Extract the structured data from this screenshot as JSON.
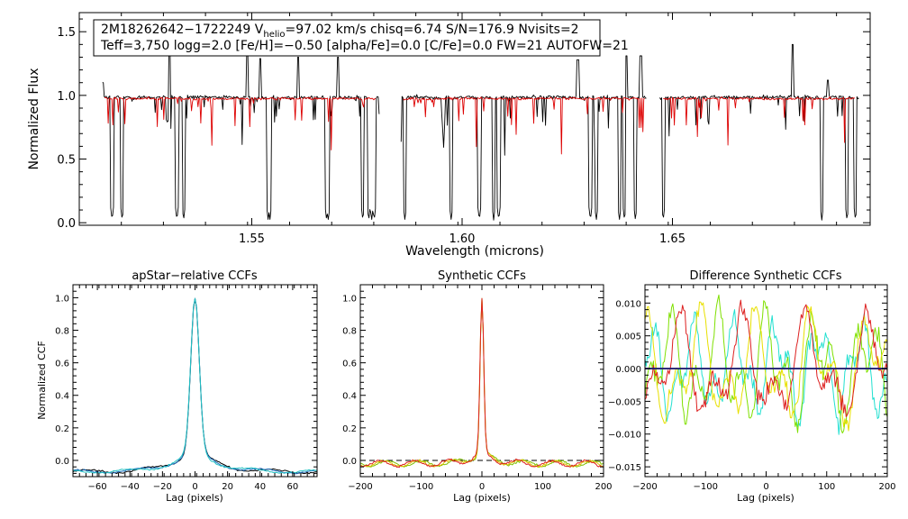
{
  "chart_data": [
    {
      "type": "line",
      "panel": "spectrum",
      "info": {
        "line1_part1": "2M18262642−1722249  V",
        "line1_sub": "helio",
        "line1_part2": "=97.02 km/s  chisq=6.74  S/N=176.9  Nvisits=2",
        "line2": "Teff=3,750 logg=2.0 [Fe/H]=−0.50 [alpha/Fe]=0.0 [C/Fe]=0.0 FW=21 AUTOFW=21"
      },
      "xlabel": "Wavelength (microns)",
      "ylabel": "Normalized Flux",
      "xlim": [
        1.509,
        1.697
      ],
      "ylim": [
        -0.02,
        1.65
      ],
      "xticks": [
        1.55,
        1.6,
        1.65
      ],
      "xtick_labels": [
        "1.55",
        "1.60",
        "1.65"
      ],
      "yticks": [
        0.0,
        0.5,
        1.0,
        1.5
      ],
      "ytick_labels": [
        "0.0",
        "0.5",
        "1.0",
        "1.5"
      ],
      "chips": [
        [
          1.5145,
          1.5805
        ],
        [
          1.5855,
          1.644
        ],
        [
          1.647,
          1.6945
        ]
      ],
      "model_ranges": [
        [
          1.515,
          1.5795
        ],
        [
          1.586,
          1.6435
        ],
        [
          1.6478,
          1.6935
        ]
      ],
      "series": [
        {
          "role": "observed",
          "color": "#000000"
        },
        {
          "role": "model",
          "color": "#dd0000"
        }
      ],
      "deep_features": [
        1.5168,
        1.5192,
        1.5322,
        1.5338,
        1.5539,
        1.5543,
        1.5678,
        1.5682,
        1.5764,
        1.5778,
        1.5785,
        1.5791,
        1.5864,
        1.5974,
        1.6041,
        1.6075,
        1.6087,
        1.6305,
        1.6319,
        1.6374,
        1.6386,
        1.6412,
        1.6478,
        1.6855,
        1.6915,
        1.6935
      ],
      "spikes": [
        [
          1.5145,
          1.1
        ],
        [
          1.5305,
          1.46
        ],
        [
          1.549,
          1.37
        ],
        [
          1.552,
          1.29
        ],
        [
          1.561,
          1.3
        ],
        [
          1.5705,
          1.3
        ],
        [
          1.6086,
          1.18
        ],
        [
          1.6275,
          1.28
        ],
        [
          1.639,
          1.31
        ],
        [
          1.6425,
          1.31
        ],
        [
          1.6785,
          1.4
        ],
        [
          1.687,
          1.12
        ]
      ]
    },
    {
      "type": "line",
      "panel": "ccf_apstar",
      "title": "apStar−relative CCFs",
      "xlabel": "Lag (pixels)",
      "ylabel": "Normalized CCF",
      "xlim": [
        -75,
        75
      ],
      "ylim": [
        -0.1,
        1.08
      ],
      "xticks": [
        -60,
        -40,
        -20,
        0,
        20,
        40,
        60
      ],
      "xtick_labels": [
        "−60",
        "−40",
        "−20",
        "0",
        "20",
        "40",
        "60"
      ],
      "yticks": [
        0.0,
        0.2,
        0.4,
        0.6,
        0.8,
        1.0
      ],
      "ytick_labels": [
        "0.0",
        "0.2",
        "0.4",
        "0.6",
        "0.8",
        "1.0"
      ],
      "series": [
        {
          "color": "#000000"
        },
        {
          "color": "#1d6fbf"
        },
        {
          "color": "#22c2c2"
        }
      ]
    },
    {
      "type": "line",
      "panel": "ccf_synthetic",
      "title": "Synthetic CCFs",
      "xlabel": "Lag (pixels)",
      "xlim": [
        -200,
        200
      ],
      "ylim": [
        -0.1,
        1.08
      ],
      "xticks": [
        -200,
        -100,
        0,
        100,
        200
      ],
      "xtick_labels": [
        "−200",
        "−100",
        "0",
        "100",
        "200"
      ],
      "yticks": [
        0.0,
        0.2,
        0.4,
        0.6,
        0.8,
        1.0
      ],
      "ytick_labels": [
        "0.0",
        "0.2",
        "0.4",
        "0.6",
        "0.8",
        "1.0"
      ],
      "zero_line": 0.0,
      "series": [
        {
          "color": "#7fc000"
        },
        {
          "color": "#e0c000"
        },
        {
          "color": "#dd2020"
        }
      ]
    },
    {
      "type": "line",
      "panel": "ccf_difference",
      "title": "Difference Synthetic CCFs",
      "xlabel": "Lag (pixels)",
      "xlim": [
        -200,
        200
      ],
      "ylim": [
        -0.0165,
        0.0128
      ],
      "xticks": [
        -200,
        -100,
        0,
        100,
        200
      ],
      "xtick_labels": [
        "−200",
        "−100",
        "0",
        "100",
        "200"
      ],
      "yticks": [
        -0.015,
        -0.01,
        -0.005,
        0.0,
        0.005,
        0.01
      ],
      "ytick_labels": [
        "−0.015",
        "−0.010",
        "−0.005",
        "0.000",
        "0.005",
        "0.010"
      ],
      "series": [
        {
          "color": "#22e0d0"
        },
        {
          "color": "#7fe000"
        },
        {
          "color": "#e8e000"
        },
        {
          "color": "#dd2020"
        },
        {
          "color": "#202070"
        }
      ]
    }
  ]
}
